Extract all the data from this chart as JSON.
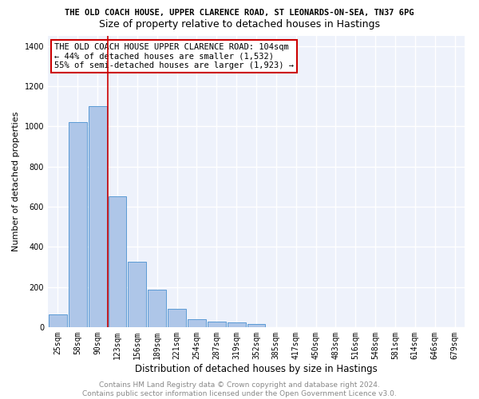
{
  "title_main": "THE OLD COACH HOUSE, UPPER CLARENCE ROAD, ST LEONARDS-ON-SEA, TN37 6PG",
  "title_sub": "Size of property relative to detached houses in Hastings",
  "xlabel": "Distribution of detached houses by size in Hastings",
  "ylabel": "Number of detached properties",
  "bar_labels": [
    "25sqm",
    "58sqm",
    "90sqm",
    "123sqm",
    "156sqm",
    "189sqm",
    "221sqm",
    "254sqm",
    "287sqm",
    "319sqm",
    "352sqm",
    "385sqm",
    "417sqm",
    "450sqm",
    "483sqm",
    "516sqm",
    "548sqm",
    "581sqm",
    "614sqm",
    "646sqm",
    "679sqm"
  ],
  "bar_values": [
    62,
    1020,
    1100,
    650,
    325,
    185,
    90,
    40,
    28,
    22,
    15,
    0,
    0,
    0,
    0,
    0,
    0,
    0,
    0,
    0,
    0
  ],
  "bar_color": "#aec6e8",
  "bar_edge_color": "#5b9bd5",
  "vline_x": 2.5,
  "vline_color": "#cc0000",
  "ylim": [
    0,
    1450
  ],
  "annotation_text": "THE OLD COACH HOUSE UPPER CLARENCE ROAD: 104sqm\n← 44% of detached houses are smaller (1,532)\n55% of semi-detached houses are larger (1,923) →",
  "annotation_box_color": "#ffffff",
  "annotation_edge_color": "#cc0000",
  "footer_text": "Contains HM Land Registry data © Crown copyright and database right 2024.\nContains public sector information licensed under the Open Government Licence v3.0.",
  "bg_color": "#eef2fb",
  "grid_color": "#ffffff",
  "title_fontsize": 7.5,
  "subtitle_fontsize": 9,
  "xlabel_fontsize": 8.5,
  "ylabel_fontsize": 8,
  "tick_fontsize": 7,
  "annotation_fontsize": 7.5,
  "footer_fontsize": 6.5
}
